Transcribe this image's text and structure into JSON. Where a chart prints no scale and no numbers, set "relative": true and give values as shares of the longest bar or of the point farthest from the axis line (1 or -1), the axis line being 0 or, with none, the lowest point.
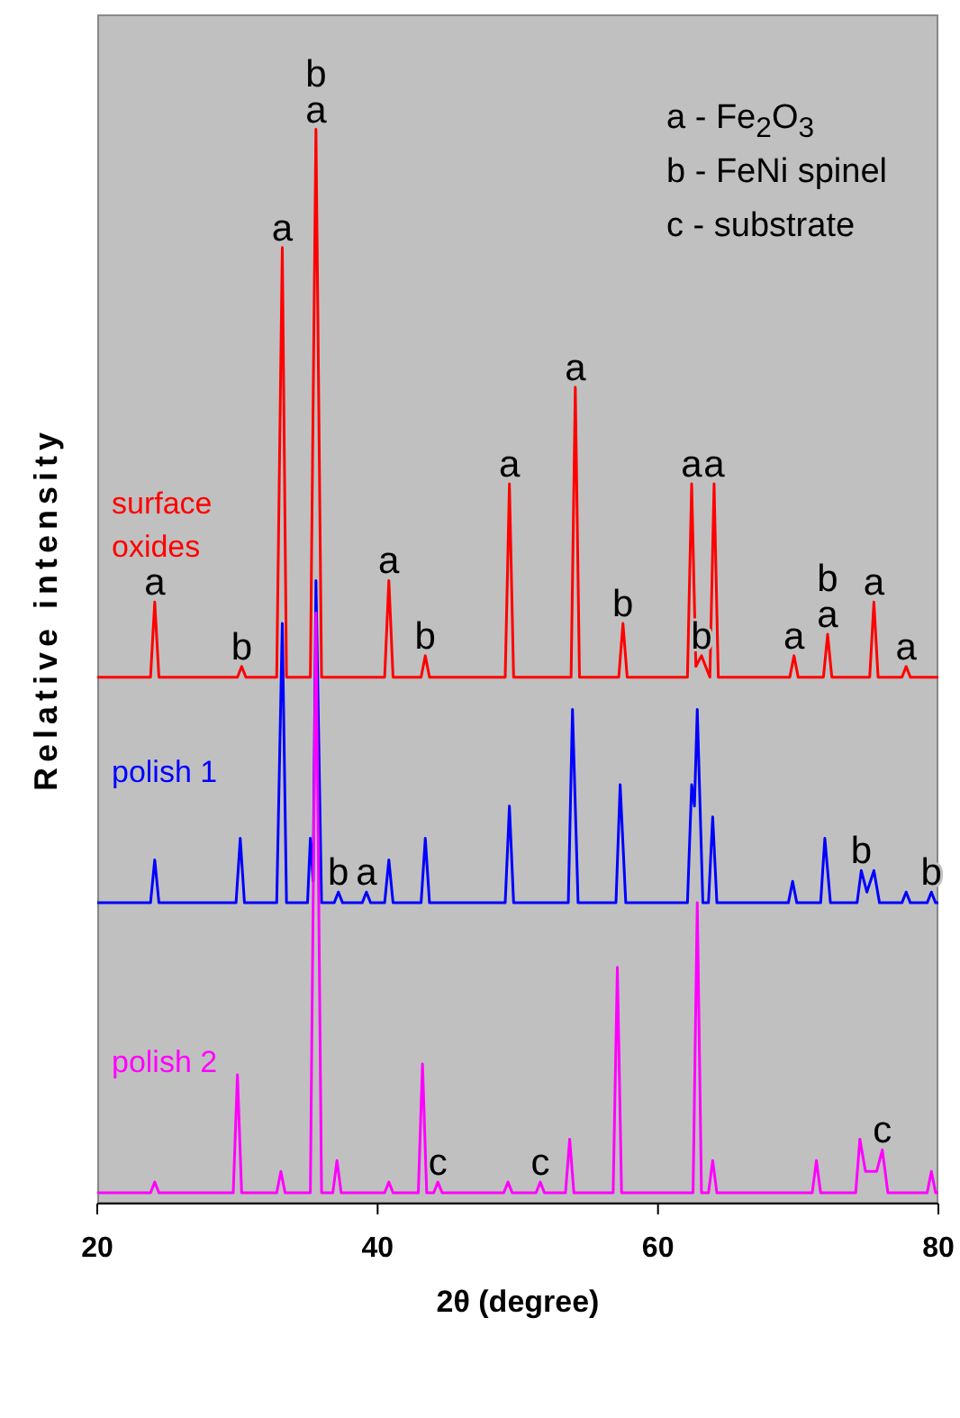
{
  "chart_data": {
    "type": "line",
    "relative": true,
    "xlabel": "2θ (degree)",
    "ylabel": "Relative intensity",
    "xlim": [
      20,
      80
    ],
    "xticks": [
      20,
      40,
      60,
      80
    ],
    "line_style": "solid",
    "marker": "none",
    "annotations": [
      "a - Fe$_{2}$O$_{3}$",
      "b - FeNi spinel",
      "c - substrate",
      {
        "text": "a",
        "x": 24.1,
        "y": 0.56
      },
      {
        "text": "b",
        "x": 30.3,
        "y": 0.5
      },
      {
        "text": "a",
        "x": 33.2,
        "y": 0.89
      },
      {
        "text": "a",
        "x": 35.6,
        "y": 1.0
      },
      {
        "text": "b",
        "x": 35.6,
        "y": 1.0
      },
      {
        "text": "a",
        "x": 40.8,
        "y": 0.58
      },
      {
        "text": "b",
        "x": 43.4,
        "y": 0.51
      },
      {
        "text": "a",
        "x": 49.4,
        "y": 0.67
      },
      {
        "text": "a",
        "x": 54.1,
        "y": 0.76
      },
      {
        "text": "b",
        "x": 57.5,
        "y": 0.54
      },
      {
        "text": "a",
        "x": 62.4,
        "y": 0.67
      },
      {
        "text": "b",
        "x": 63.1,
        "y": 0.51
      },
      {
        "text": "a",
        "x": 64.0,
        "y": 0.67
      },
      {
        "text": "a",
        "x": 69.7,
        "y": 0.51
      },
      {
        "text": "a",
        "x": 72.1,
        "y": 0.53
      },
      {
        "text": "b",
        "x": 72.1,
        "y": 0.53
      },
      {
        "text": "a",
        "x": 75.4,
        "y": 0.56
      },
      {
        "text": "a",
        "x": 77.7,
        "y": 0.5
      },
      {
        "text": "b",
        "x": 37.2,
        "y": 0.29
      },
      {
        "text": "a",
        "x": 39.2,
        "y": 0.29
      },
      {
        "text": "b",
        "x": 74.5,
        "y": 0.31
      },
      {
        "text": "b",
        "x": 79.5,
        "y": 0.29
      },
      {
        "text": "c",
        "x": 44.3,
        "y": 0.02
      },
      {
        "text": "c",
        "x": 51.6,
        "y": 0.02
      },
      {
        "text": "c",
        "x": 76.0,
        "y": 0.05
      }
    ],
    "series": [
      {
        "name": "surface oxides",
        "color": "#ff0000",
        "x": [
          20,
          23.8,
          24.1,
          24.4,
          30.0,
          30.3,
          30.6,
          32.8,
          33.2,
          33.5,
          35.2,
          35.6,
          36.0,
          40.5,
          40.8,
          41.1,
          43.1,
          43.4,
          43.7,
          49.1,
          49.4,
          49.7,
          53.8,
          54.1,
          54.4,
          57.2,
          57.5,
          57.8,
          62.1,
          62.4,
          62.7,
          63.1,
          63.7,
          64.0,
          64.3,
          69.4,
          69.7,
          70.0,
          71.8,
          72.1,
          72.4,
          75.1,
          75.4,
          75.7,
          77.4,
          77.7,
          78.0,
          80
        ],
        "values": [
          0.49,
          0.49,
          0.56,
          0.49,
          0.49,
          0.5,
          0.49,
          0.49,
          0.89,
          0.49,
          0.49,
          1.0,
          0.49,
          0.49,
          0.58,
          0.49,
          0.49,
          0.51,
          0.49,
          0.49,
          0.67,
          0.49,
          0.49,
          0.76,
          0.49,
          0.49,
          0.54,
          0.49,
          0.49,
          0.67,
          0.5,
          0.51,
          0.49,
          0.67,
          0.49,
          0.49,
          0.51,
          0.49,
          0.49,
          0.53,
          0.49,
          0.49,
          0.56,
          0.49,
          0.49,
          0.5,
          0.49,
          0.49
        ]
      },
      {
        "name": "polish 1",
        "color": "#0000ff",
        "x": [
          20,
          23.8,
          24.1,
          24.4,
          29.9,
          30.2,
          30.5,
          32.8,
          33.2,
          33.5,
          35.0,
          35.2,
          35.4,
          35.6,
          36.0,
          36.9,
          37.2,
          37.5,
          38.9,
          39.2,
          39.5,
          40.5,
          40.8,
          41.1,
          43.1,
          43.4,
          43.7,
          49.1,
          49.4,
          49.7,
          53.6,
          53.9,
          54.3,
          57.0,
          57.3,
          57.7,
          62.1,
          62.4,
          62.6,
          62.8,
          63.2,
          63.6,
          63.9,
          64.2,
          69.3,
          69.6,
          69.9,
          71.6,
          71.9,
          72.3,
          74.2,
          74.5,
          74.9,
          75.4,
          75.8,
          77.4,
          77.7,
          78.0,
          79.2,
          79.5,
          79.8,
          80
        ],
        "values": [
          0.28,
          0.28,
          0.32,
          0.28,
          0.28,
          0.34,
          0.28,
          0.28,
          0.54,
          0.28,
          0.28,
          0.34,
          0.3,
          0.58,
          0.28,
          0.28,
          0.29,
          0.28,
          0.28,
          0.29,
          0.28,
          0.28,
          0.32,
          0.28,
          0.28,
          0.34,
          0.28,
          0.28,
          0.37,
          0.28,
          0.28,
          0.46,
          0.28,
          0.28,
          0.39,
          0.28,
          0.28,
          0.39,
          0.37,
          0.46,
          0.28,
          0.28,
          0.36,
          0.28,
          0.28,
          0.3,
          0.28,
          0.28,
          0.34,
          0.28,
          0.28,
          0.31,
          0.29,
          0.31,
          0.28,
          0.28,
          0.29,
          0.28,
          0.28,
          0.29,
          0.28,
          0.28
        ]
      },
      {
        "name": "polish 2",
        "color": "#ff00ff",
        "x": [
          20,
          23.8,
          24.1,
          24.4,
          29.7,
          30.0,
          30.3,
          32.8,
          33.1,
          33.4,
          35.2,
          35.6,
          36.0,
          36.8,
          37.1,
          37.4,
          40.5,
          40.8,
          41.1,
          42.9,
          43.2,
          43.5,
          44.0,
          44.3,
          44.6,
          49.0,
          49.3,
          49.6,
          51.3,
          51.6,
          51.9,
          53.4,
          53.7,
          54.0,
          56.8,
          57.1,
          57.4,
          62.5,
          62.8,
          63.1,
          63.6,
          63.9,
          64.2,
          71.0,
          71.3,
          71.6,
          74.1,
          74.4,
          74.8,
          75.6,
          76.0,
          76.4,
          79.2,
          79.5,
          79.8,
          80
        ],
        "values": [
          0.01,
          0.01,
          0.02,
          0.01,
          0.01,
          0.12,
          0.01,
          0.01,
          0.03,
          0.01,
          0.01,
          0.55,
          0.01,
          0.01,
          0.04,
          0.01,
          0.01,
          0.02,
          0.01,
          0.01,
          0.13,
          0.01,
          0.01,
          0.02,
          0.01,
          0.01,
          0.02,
          0.01,
          0.01,
          0.02,
          0.01,
          0.01,
          0.06,
          0.01,
          0.01,
          0.22,
          0.01,
          0.01,
          0.28,
          0.01,
          0.01,
          0.04,
          0.01,
          0.01,
          0.04,
          0.01,
          0.01,
          0.06,
          0.03,
          0.03,
          0.05,
          0.01,
          0.01,
          0.03,
          0.01,
          0.01
        ]
      }
    ]
  }
}
